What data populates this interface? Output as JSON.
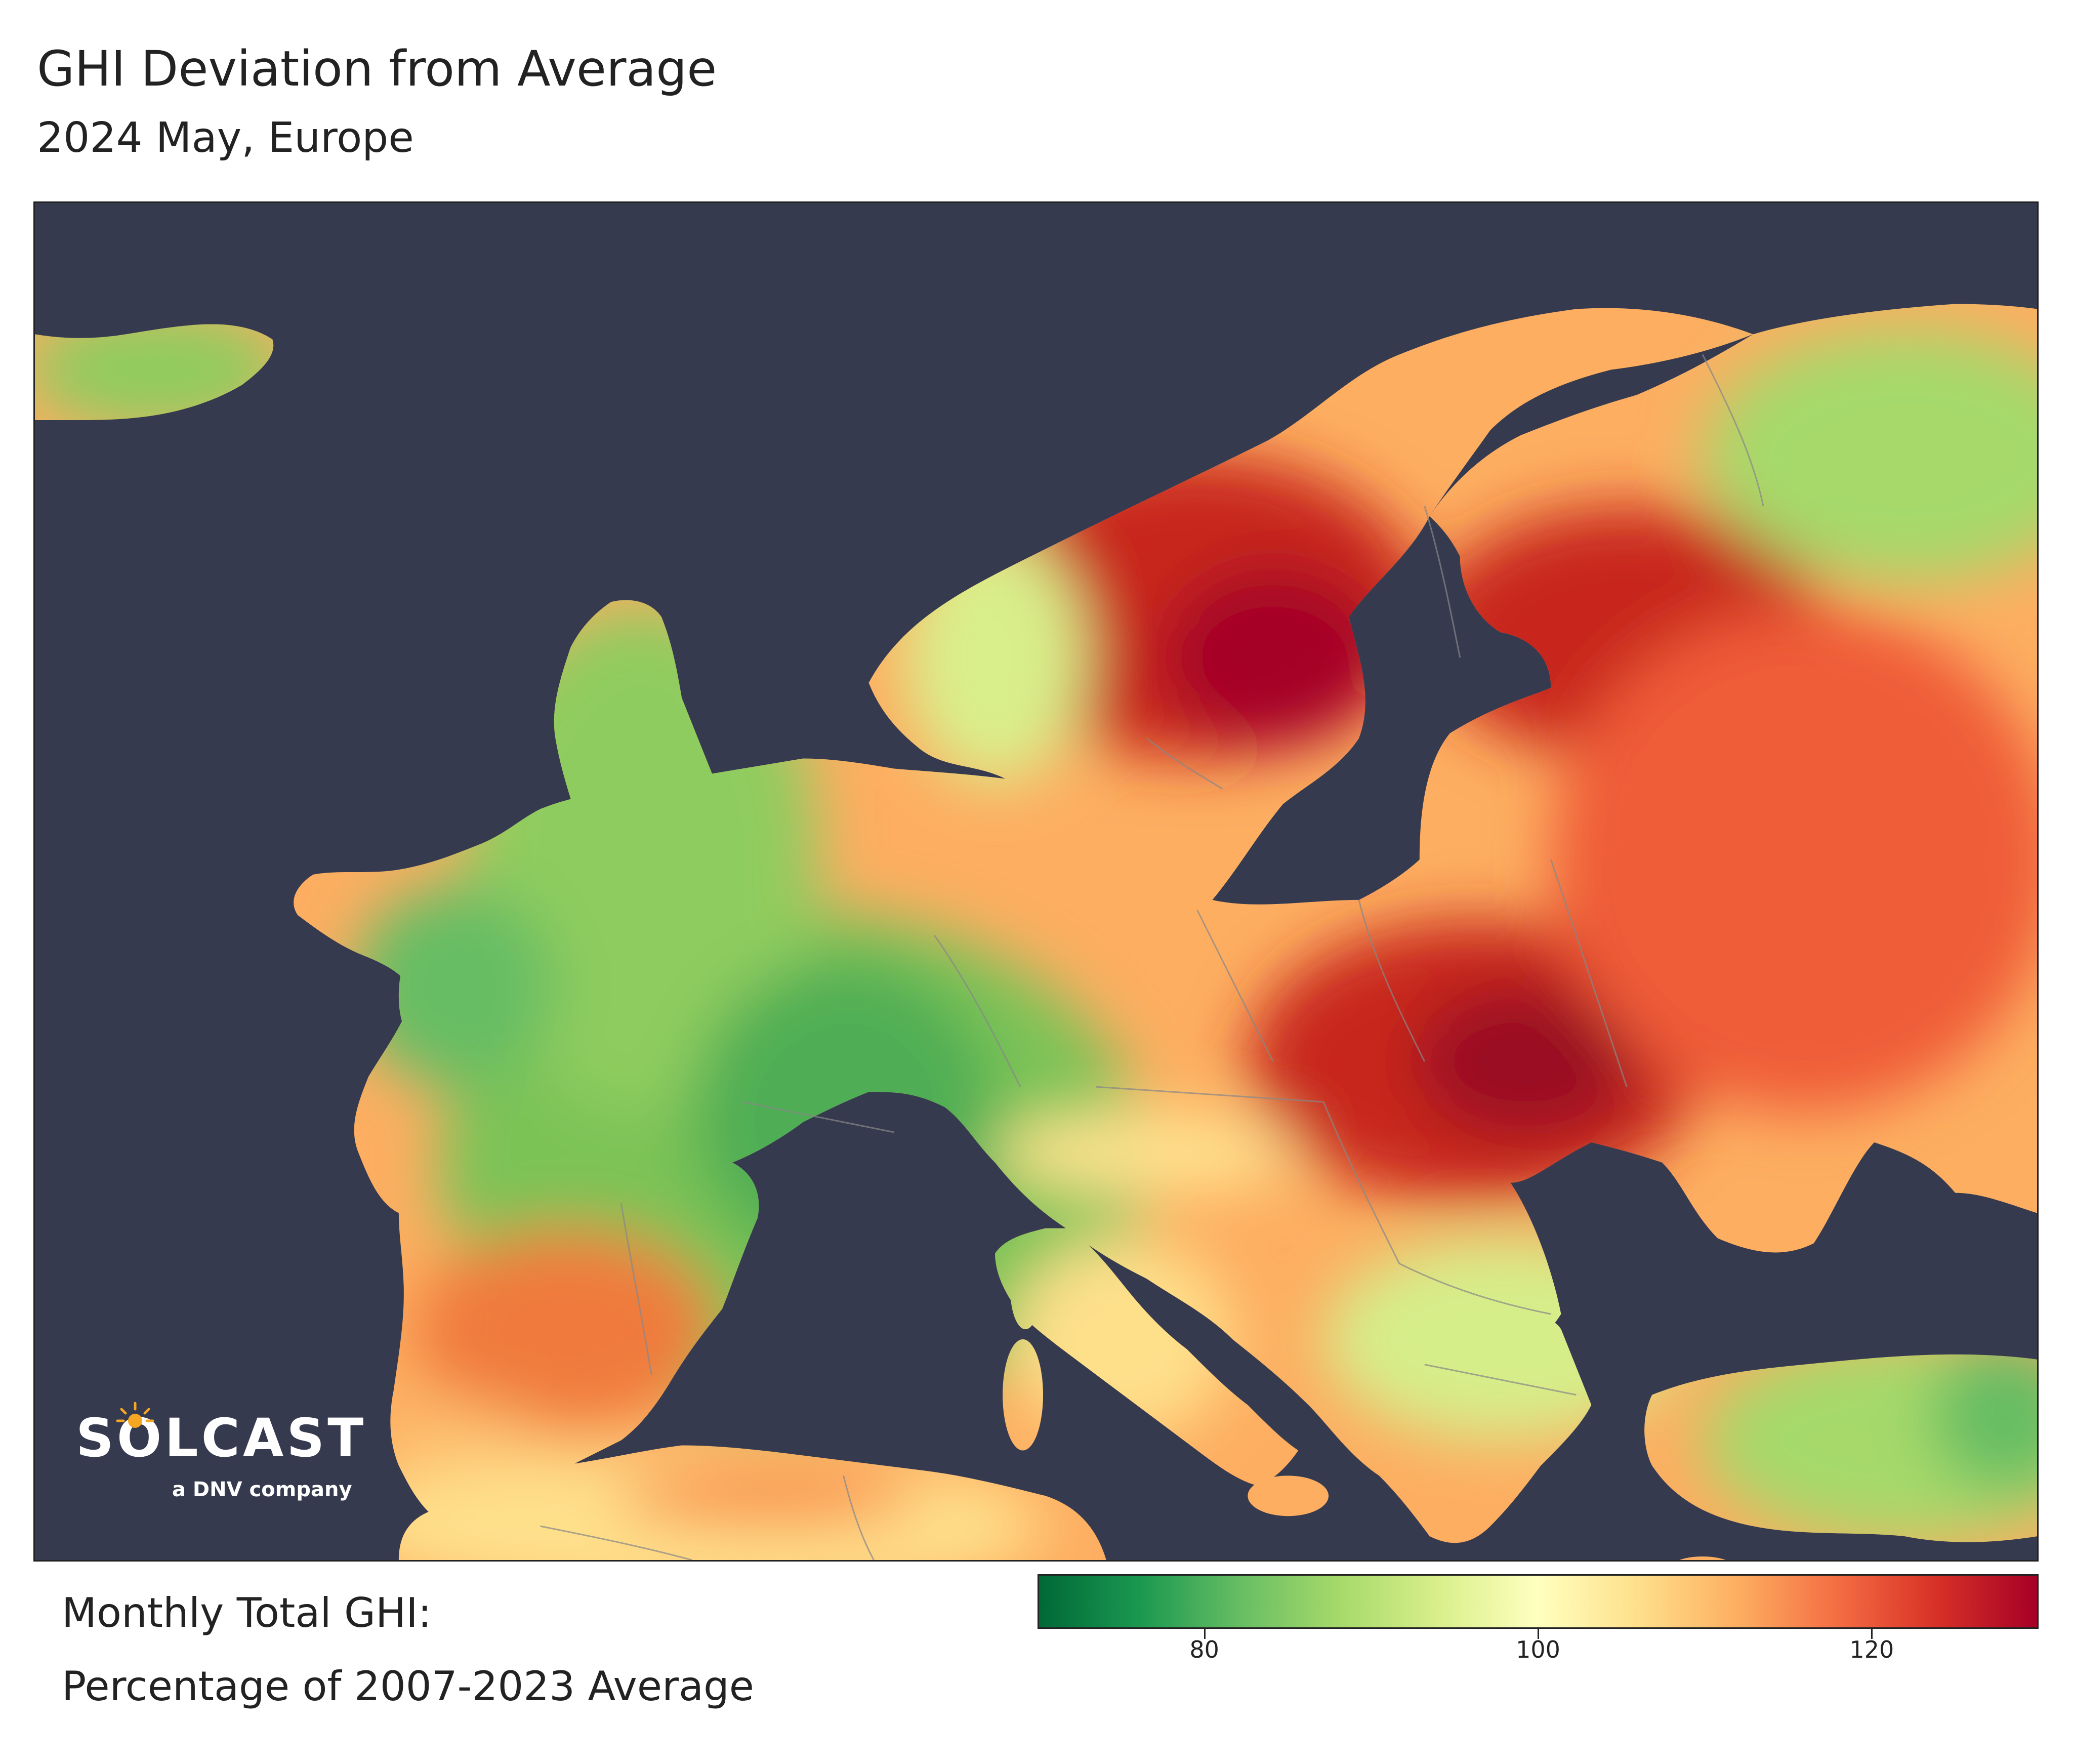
{
  "header": {
    "title": "GHI Deviation from Average",
    "subtitle": "2024 May, Europe"
  },
  "map": {
    "region": "Europe",
    "background_color": "#363a4f",
    "border_color": "#888888"
  },
  "logo": {
    "brand": "SOLCAST",
    "tagline": "a DNV company",
    "icon": "sun-icon"
  },
  "legend": {
    "label_line1": "Monthly Total GHI:",
    "label_line2": "Percentage of 2007-2023 Average",
    "colormap": [
      "#006837",
      "#1a9850",
      "#66bd63",
      "#a6d96a",
      "#d9ef8b",
      "#ffffbf",
      "#fee08b",
      "#fdae61",
      "#f46d43",
      "#d73027",
      "#a50026"
    ],
    "range": [
      70,
      130
    ],
    "ticks": [
      {
        "value": 80,
        "label": "80"
      },
      {
        "value": 100,
        "label": "100"
      },
      {
        "value": 120,
        "label": "120"
      }
    ]
  }
}
